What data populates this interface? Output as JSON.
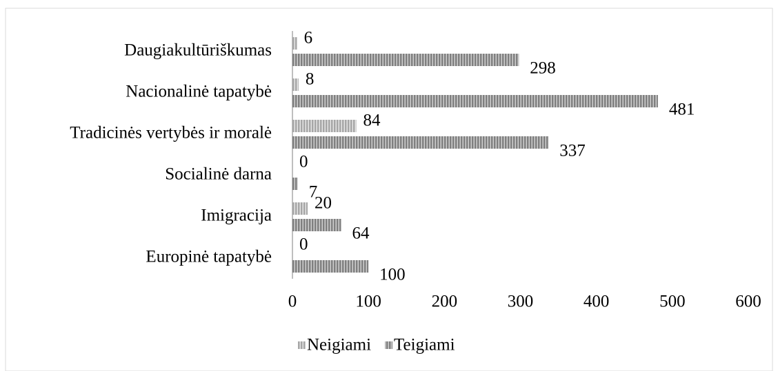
{
  "chart_data": {
    "type": "bar",
    "orientation": "horizontal",
    "categories": [
      "Daugiakultūriškumas",
      "Nacionalinė tapatybė",
      "Tradicinės vertybės ir moralė",
      "Socialinė darna",
      "Imigracija",
      "Europinė tapatybė"
    ],
    "series": [
      {
        "name": "Neigiami",
        "color": "#a6a6a6",
        "values": [
          6,
          8,
          84,
          0,
          20,
          0
        ]
      },
      {
        "name": "Teigiami",
        "color": "#7f7f7f",
        "values": [
          298,
          481,
          337,
          7,
          64,
          100
        ]
      }
    ],
    "xlim": [
      0,
      600
    ],
    "xticks": [
      0,
      100,
      200,
      300,
      400,
      500,
      600
    ],
    "grid": false,
    "legend": "bottom"
  }
}
